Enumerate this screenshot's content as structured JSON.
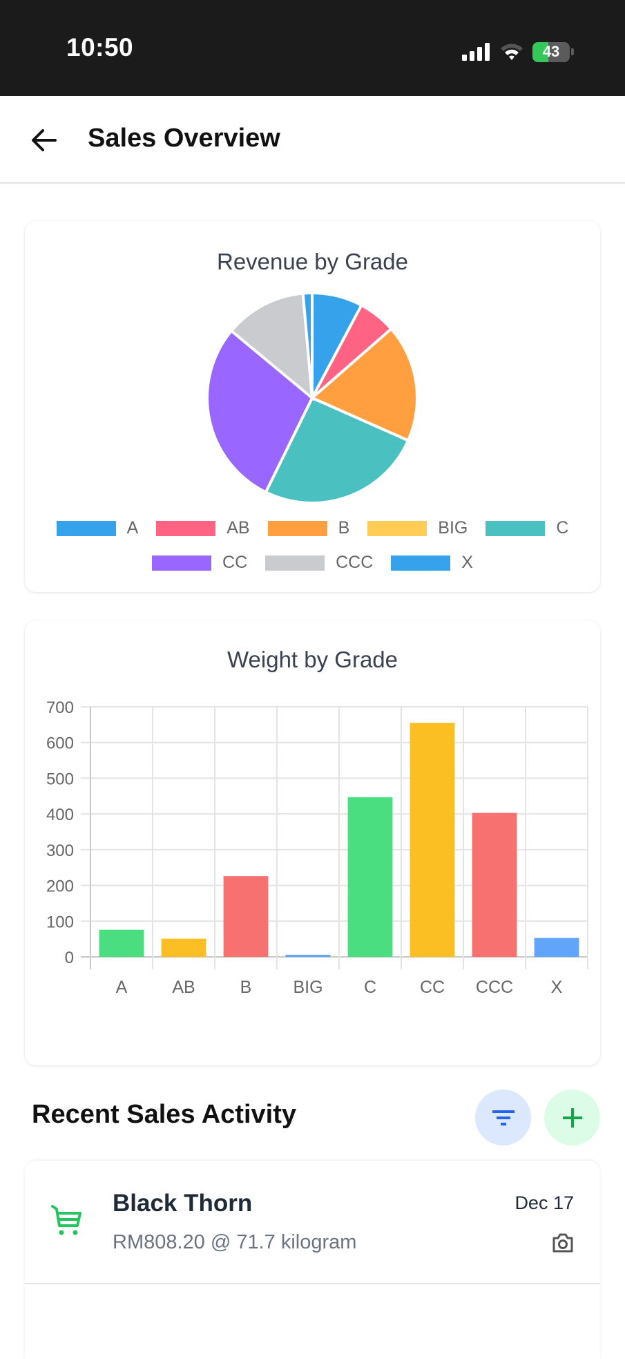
{
  "status_bar": {
    "time": "10:50",
    "battery": "43"
  },
  "app_bar": {
    "title": "Sales Overview"
  },
  "charts": {
    "pie": {
      "title": "Revenue by Grade"
    },
    "bar": {
      "title": "Weight by Grade"
    }
  },
  "chart_data": [
    {
      "type": "pie",
      "title": "Revenue by Grade",
      "categories": [
        "A",
        "AB",
        "B",
        "BIG",
        "C",
        "CC",
        "CCC",
        "X"
      ],
      "values": [
        7.8,
        5.8,
        18.1,
        0,
        25.7,
        28.8,
        12.6,
        1.4
      ],
      "value_unit": "percent of revenue (estimated from slice angles)",
      "colors": [
        "#36a2eb",
        "#ff6384",
        "#ff9f40",
        "#ffcd56",
        "#4bc0c0",
        "#9966ff",
        "#c9cbcf",
        "#36a2eb"
      ],
      "legend_position": "bottom"
    },
    {
      "type": "bar",
      "title": "Weight by Grade",
      "categories": [
        "A",
        "AB",
        "B",
        "BIG",
        "C",
        "CC",
        "CCC",
        "X"
      ],
      "values": [
        76,
        51,
        226,
        6,
        447,
        655,
        403,
        53
      ],
      "colors": [
        "#4ade80",
        "#fbbf24",
        "#f87171",
        "#60a5fa",
        "#4ade80",
        "#fbbf24",
        "#f87171",
        "#60a5fa"
      ],
      "xlabel": "",
      "ylabel": "",
      "ylim": [
        0,
        700
      ],
      "yticks": [
        0,
        100,
        200,
        300,
        400,
        500,
        600,
        700
      ],
      "grid": true,
      "legend": false
    }
  ],
  "recent": {
    "title": "Recent Sales Activity",
    "items": [
      {
        "name": "Black Thorn",
        "detail": "RM808.20 @ 71.7 kilogram",
        "date": "Dec 17"
      }
    ]
  },
  "colors": {
    "filter_bg": "#dbe8fd",
    "filter_icon": "#2563eb",
    "add_bg": "#dcfce7",
    "add_icon": "#16a34a",
    "cart_icon": "#22c55e"
  }
}
